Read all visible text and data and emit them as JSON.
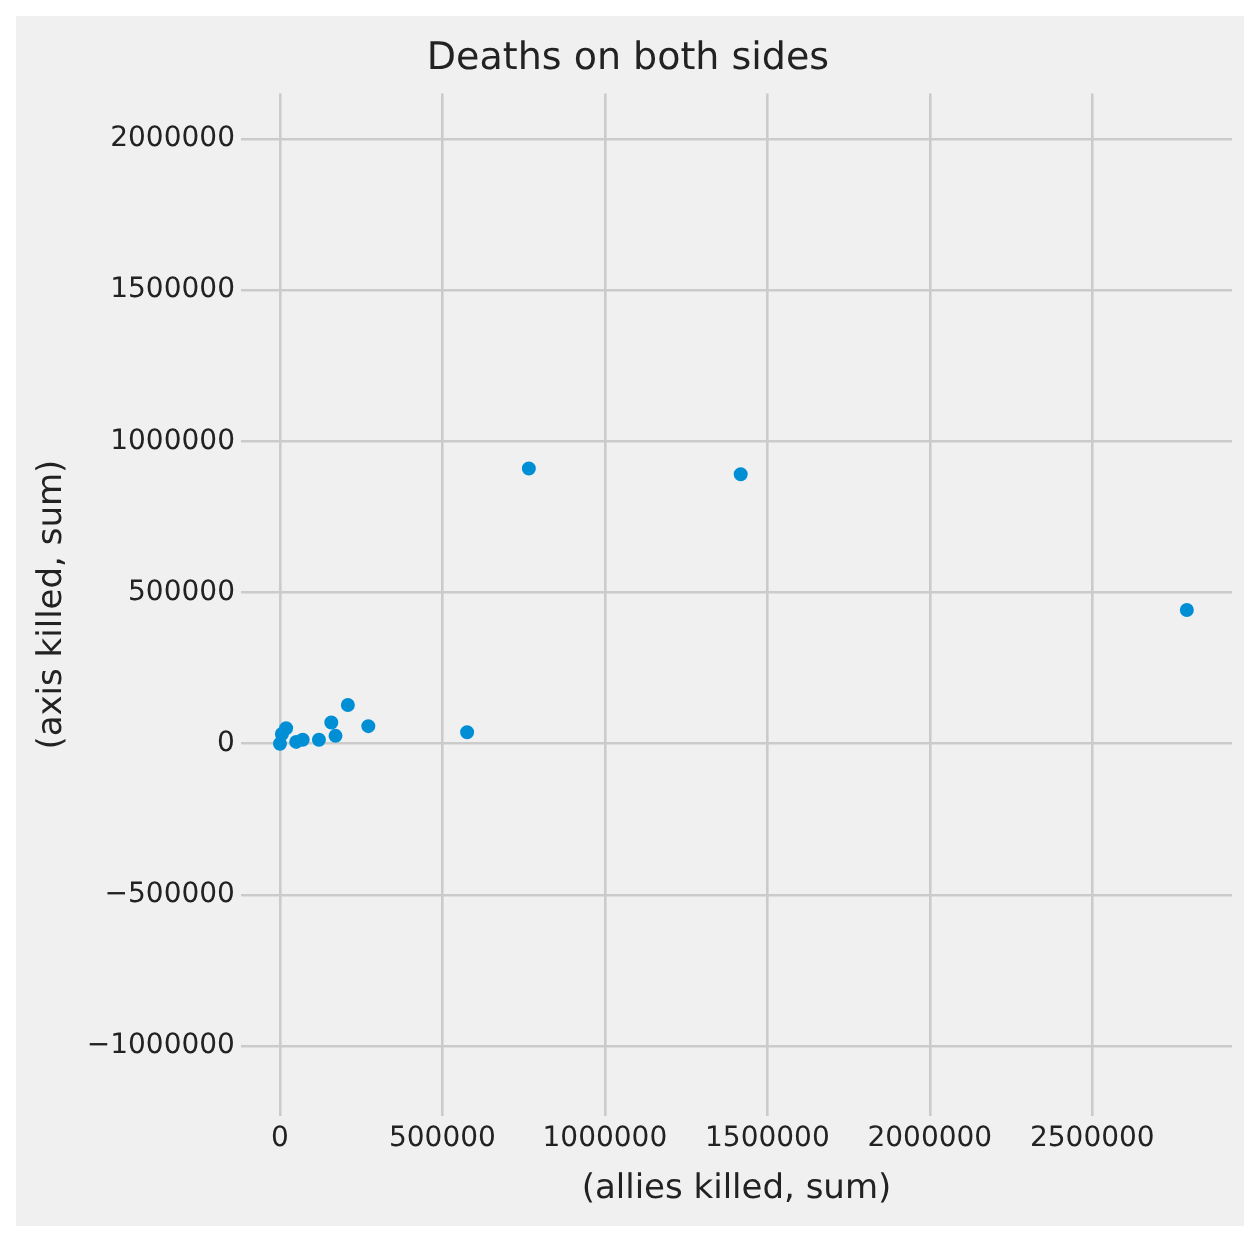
{
  "chart_data": {
    "type": "scatter",
    "title": "Deaths on both sides",
    "xlabel": "(allies killed, sum)",
    "ylabel": "(axis killed, sum)",
    "x": [
      766000,
      1418000,
      2791000,
      576000,
      272000,
      209000,
      158000,
      171000,
      120000,
      70000,
      19000,
      6000,
      0,
      50000
    ],
    "series": [
      {
        "color": "#008fd5",
        "values": [
          910000,
          891000,
          442000,
          38000,
          58000,
          128000,
          70000,
          26000,
          13000,
          13000,
          51000,
          32000,
          0,
          6000
        ]
      }
    ],
    "xlim": [
      -120000,
      2930000
    ],
    "ylim": [
      -1230000,
      2150000
    ],
    "xticks": [
      0,
      500000,
      1000000,
      1500000,
      2000000,
      2500000
    ],
    "yticks": [
      -1000000,
      -500000,
      0,
      500000,
      1000000,
      1500000,
      2000000
    ],
    "grid": true,
    "marker": "circle"
  }
}
